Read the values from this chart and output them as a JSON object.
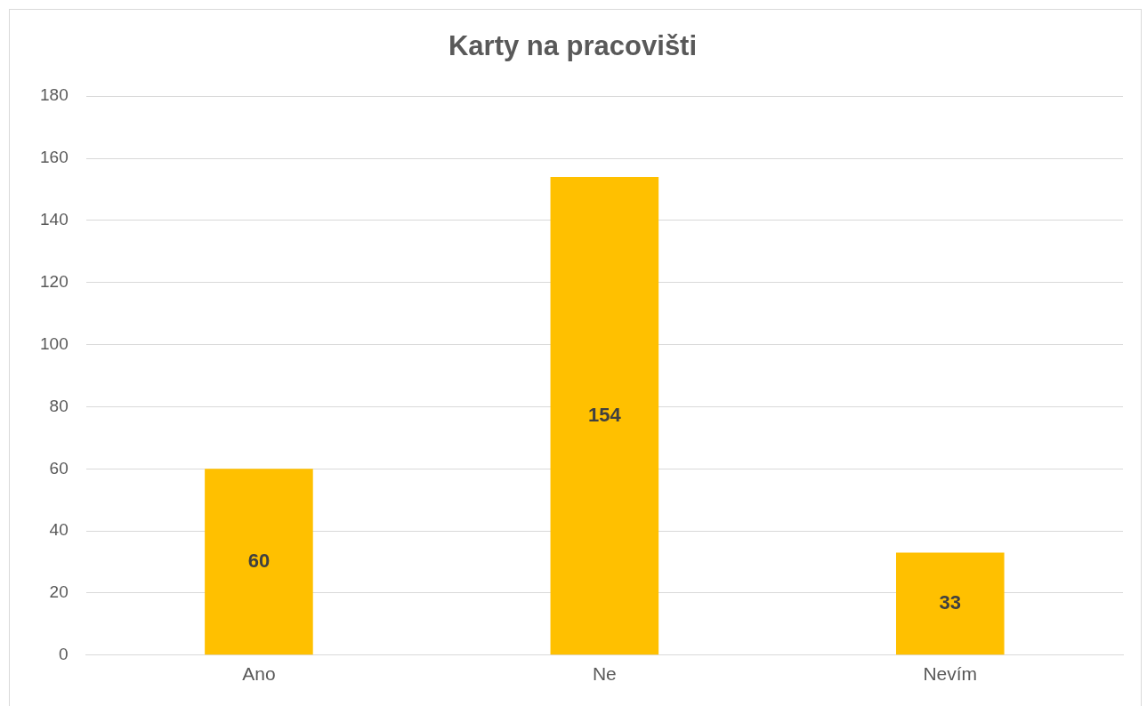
{
  "chart_data": {
    "type": "bar",
    "title": "Karty na pracovišti",
    "categories": [
      "Ano",
      "Ne",
      "Nevím"
    ],
    "values": [
      60,
      154,
      33
    ],
    "color": "#ffc000",
    "ylim": [
      0,
      180
    ],
    "yticks": [
      0,
      20,
      40,
      60,
      80,
      100,
      120,
      140,
      160,
      180
    ],
    "grid": "y",
    "data_labels": true
  }
}
